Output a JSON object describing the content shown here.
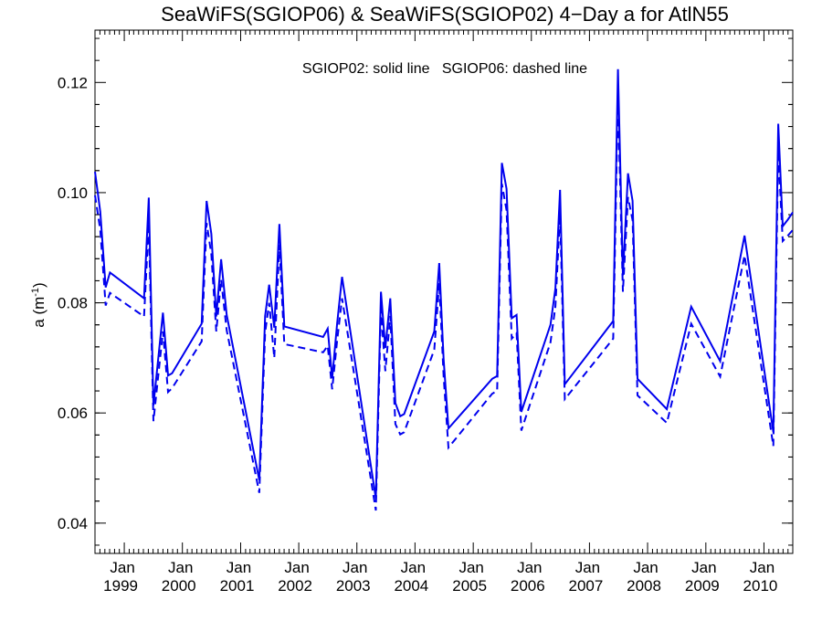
{
  "chart_data": {
    "type": "line",
    "title": "SeaWiFS(SGIOP06) & SeaWiFS(SGIOP02) 4−Day a for AtlN55",
    "annotation": "SGIOP02: solid line   SGIOP06: dashed line",
    "xlabel": "",
    "ylabel_main": "a (m",
    "ylabel_sup": "-1",
    "ylabel_close": ")",
    "ylim": [
      0.0345,
      0.1295
    ],
    "xlim": [
      "1998-07-01",
      "2010-07-01"
    ],
    "y_ticks": [
      {
        "value": 0.04,
        "label": "0.04"
      },
      {
        "value": 0.06,
        "label": "0.06"
      },
      {
        "value": 0.08,
        "label": "0.08"
      },
      {
        "value": 0.1,
        "label": "0.10"
      },
      {
        "value": 0.12,
        "label": "0.12"
      }
    ],
    "x_ticks": [
      {
        "value": "1999-01-01",
        "label_month": "Jan",
        "label_year": "1999"
      },
      {
        "value": "2000-01-01",
        "label_month": "Jan",
        "label_year": "2000"
      },
      {
        "value": "2001-01-01",
        "label_month": "Jan",
        "label_year": "2001"
      },
      {
        "value": "2002-01-01",
        "label_month": "Jan",
        "label_year": "2002"
      },
      {
        "value": "2003-01-01",
        "label_month": "Jan",
        "label_year": "2003"
      },
      {
        "value": "2004-01-01",
        "label_month": "Jan",
        "label_year": "2004"
      },
      {
        "value": "2005-01-01",
        "label_month": "Jan",
        "label_year": "2005"
      },
      {
        "value": "2006-01-01",
        "label_month": "Jan",
        "label_year": "2006"
      },
      {
        "value": "2007-01-01",
        "label_month": "Jan",
        "label_year": "2007"
      },
      {
        "value": "2008-01-01",
        "label_month": "Jan",
        "label_year": "2008"
      },
      {
        "value": "2009-01-01",
        "label_month": "Jan",
        "label_year": "2009"
      },
      {
        "value": "2010-01-01",
        "label_month": "Jan",
        "label_year": "2010"
      }
    ],
    "series_color": "#0000ee",
    "series": [
      {
        "style": "solid",
        "x": [
          "1998-07-01",
          "1998-08-03",
          "1998-09-06",
          "1998-10-03",
          "1999-05-05",
          "1999-06-04",
          "1999-07-03",
          "1999-09-01",
          "1999-10-03",
          "1999-10-28",
          "2000-05-01",
          "2000-06-01",
          "2000-07-01",
          "2000-08-01",
          "2000-08-31",
          "2000-10-05",
          "2001-04-28",
          "2001-06-04",
          "2001-06-29",
          "2001-07-31",
          "2001-09-01",
          "2001-10-02",
          "2002-06-03",
          "2002-07-02",
          "2002-07-30",
          "2002-08-30",
          "2002-09-30",
          "2003-04-30",
          "2003-06-01",
          "2003-06-29",
          "2003-07-30",
          "2003-08-31",
          "2003-09-30",
          "2003-10-25",
          "2004-05-01",
          "2004-06-01",
          "2004-06-29",
          "2004-07-29",
          "2005-04-30",
          "2005-05-31",
          "2005-06-30",
          "2005-07-29",
          "2005-08-31",
          "2005-09-30",
          "2005-10-30",
          "2006-05-01",
          "2006-06-01",
          "2006-06-30",
          "2006-07-30",
          "2007-05-30",
          "2007-06-29",
          "2007-07-30",
          "2007-08-31",
          "2007-09-29",
          "2007-10-30",
          "2008-05-01",
          "2008-10-01",
          "2009-04-01",
          "2009-09-01",
          "2010-03-01",
          "2010-04-01",
          "2010-04-29",
          "2010-05-31",
          "2010-07-01"
        ],
        "y": [
          0.1038,
          0.0965,
          0.0828,
          0.0855,
          0.0808,
          0.0991,
          0.0614,
          0.0782,
          0.0668,
          0.0672,
          0.0762,
          0.0985,
          0.0925,
          0.0775,
          0.0879,
          0.0778,
          0.0478,
          0.0776,
          0.0833,
          0.0755,
          0.0943,
          0.0757,
          0.0738,
          0.0753,
          0.0663,
          0.0762,
          0.0847,
          0.0445,
          0.082,
          0.0718,
          0.0808,
          0.0618,
          0.0594,
          0.0598,
          0.0748,
          0.0872,
          0.0698,
          0.0572,
          0.0662,
          0.0667,
          0.1054,
          0.1007,
          0.0772,
          0.0778,
          0.0602,
          0.076,
          0.0826,
          0.1005,
          0.0652,
          0.0767,
          0.1224,
          0.085,
          0.1035,
          0.0985,
          0.0662,
          0.0607,
          0.0793,
          0.0694,
          0.0922,
          0.0565,
          0.1125,
          0.0939,
          0.0951,
          0.0964
        ]
      },
      {
        "style": "dashed",
        "x": [
          "1998-07-01",
          "1998-08-03",
          "1998-09-06",
          "1998-10-03",
          "1999-05-05",
          "1999-06-04",
          "1999-07-03",
          "1999-09-01",
          "1999-10-03",
          "1999-10-28",
          "2000-05-01",
          "2000-06-01",
          "2000-07-01",
          "2000-08-01",
          "2000-08-31",
          "2000-10-05",
          "2001-04-28",
          "2001-06-04",
          "2001-06-29",
          "2001-07-31",
          "2001-09-01",
          "2001-10-02",
          "2002-06-03",
          "2002-07-02",
          "2002-07-30",
          "2002-08-30",
          "2002-09-30",
          "2003-04-30",
          "2003-06-01",
          "2003-06-29",
          "2003-07-30",
          "2003-08-31",
          "2003-09-30",
          "2003-10-25",
          "2004-05-01",
          "2004-06-01",
          "2004-06-29",
          "2004-07-29",
          "2005-04-30",
          "2005-05-31",
          "2005-06-30",
          "2005-07-29",
          "2005-08-31",
          "2005-09-30",
          "2005-10-30",
          "2006-05-01",
          "2006-06-01",
          "2006-06-30",
          "2006-07-30",
          "2007-05-30",
          "2007-06-29",
          "2007-07-30",
          "2007-08-31",
          "2007-09-29",
          "2007-10-30",
          "2008-05-01",
          "2008-10-01",
          "2009-04-01",
          "2009-09-01",
          "2010-03-01",
          "2010-04-01",
          "2010-04-29",
          "2010-05-31",
          "2010-07-01"
        ],
        "y": [
          0.0995,
          0.0932,
          0.0795,
          0.0818,
          0.0775,
          0.0945,
          0.0585,
          0.0748,
          0.0638,
          0.0645,
          0.073,
          0.0945,
          0.0888,
          0.0748,
          0.0842,
          0.075,
          0.0455,
          0.0746,
          0.08,
          0.07,
          0.0905,
          0.0725,
          0.071,
          0.0722,
          0.0643,
          0.0731,
          0.0808,
          0.0423,
          0.0788,
          0.0676,
          0.0776,
          0.058,
          0.0561,
          0.0565,
          0.0715,
          0.0836,
          0.0667,
          0.0537,
          0.0635,
          0.064,
          0.1016,
          0.0968,
          0.0735,
          0.0745,
          0.0568,
          0.0728,
          0.0793,
          0.0962,
          0.0625,
          0.0735,
          0.117,
          0.082,
          0.0992,
          0.095,
          0.0632,
          0.0582,
          0.0762,
          0.0666,
          0.0886,
          0.054,
          0.1075,
          0.0912,
          0.0922,
          0.0932
        ]
      }
    ]
  }
}
